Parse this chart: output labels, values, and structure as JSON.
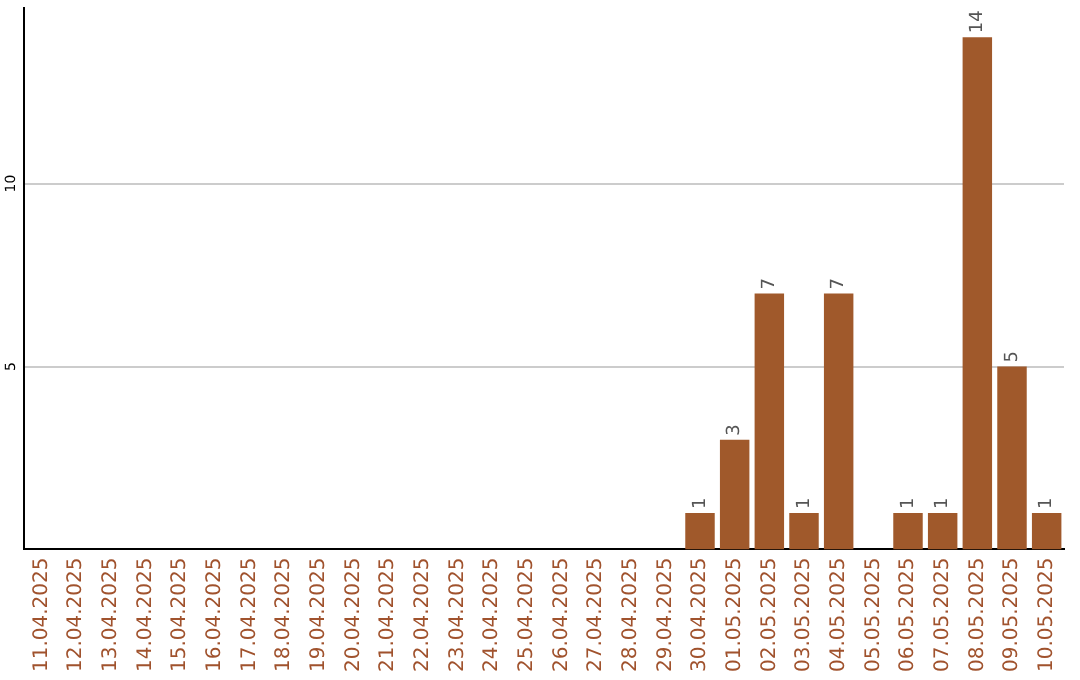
{
  "chart_data": {
    "type": "bar",
    "categories": [
      "11.04.2025",
      "12.04.2025",
      "13.04.2025",
      "14.04.2025",
      "15.04.2025",
      "16.04.2025",
      "17.04.2025",
      "18.04.2025",
      "19.04.2025",
      "20.04.2025",
      "21.04.2025",
      "22.04.2025",
      "23.04.2025",
      "24.04.2025",
      "25.04.2025",
      "26.04.2025",
      "27.04.2025",
      "28.04.2025",
      "29.04.2025",
      "30.04.2025",
      "01.05.2025",
      "02.05.2025",
      "03.05.2025",
      "04.05.2025",
      "05.05.2025",
      "06.05.2025",
      "07.05.2025",
      "08.05.2025",
      "09.05.2025",
      "10.05.2025"
    ],
    "values": [
      null,
      null,
      null,
      null,
      null,
      null,
      null,
      null,
      null,
      null,
      null,
      null,
      null,
      null,
      null,
      null,
      null,
      null,
      null,
      1,
      3,
      7,
      1,
      7,
      null,
      1,
      1,
      14,
      5,
      1
    ],
    "value_labels": [
      null,
      null,
      null,
      null,
      null,
      null,
      null,
      null,
      null,
      null,
      null,
      null,
      null,
      null,
      null,
      null,
      null,
      null,
      null,
      "1",
      "3",
      "7",
      "1",
      "7",
      null,
      "1",
      "1",
      "14",
      "5",
      "1"
    ],
    "color": "#a0592b",
    "ylim": [
      0,
      14.8
    ],
    "yticks": [
      5,
      10
    ],
    "grid": "y",
    "legend": false
  }
}
